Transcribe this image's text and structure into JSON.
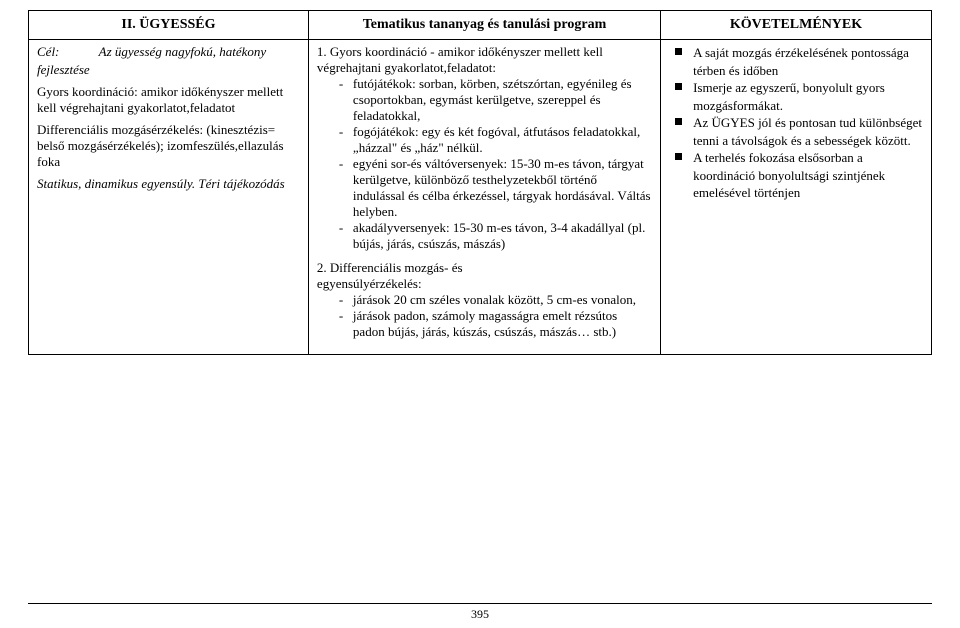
{
  "header": {
    "col1": "II. ÜGYESSÉG",
    "col2": "Tematikus tananyag és tanulási program",
    "col3": "KÖVETELMÉNYEK"
  },
  "left": {
    "goal_label": "Cél:",
    "goal_text": "Az ügyesség nagyfokú, hatékony",
    "goal_line2": "fejlesztése",
    "p1": "Gyors koordináció: amikor időkényszer mellett kell végrehajtani gyakorlatot,feladatot",
    "p2a": "Differenciális mozgásérzékelés: (kinesztézis= belső mozgásérzékelés); izomfeszülés,ellazulás foka",
    "p3": "Statikus, dinamikus egyensúly. Téri tájékozódás"
  },
  "mid": {
    "item1_title": "1. Gyors koordináció - amikor időkényszer mellett kell végrehajtani gyakorlatot,feladatot:",
    "item1_bullets": [
      "futójátékok: sorban, körben, szétszórtan, egyénileg és csoportokban, egymást kerülgetve, szereppel és feladatokkal,",
      "fogójátékok: egy és két fogóval, átfutásos feladatokkal, „házzal\" és „ház\" nélkül.",
      "egyéni sor-és váltóversenyek: 15-30 m-es távon, tárgyat kerülgetve, különböző testhelyzetekből történő indulással és célba érkezéssel, tárgyak hordásával. Váltás helyben.",
      "akadályversenyek: 15-30 m-es távon, 3-4 akadállyal (pl. bújás, járás, csúszás, mászás)"
    ],
    "item2_title_a": "2.   Differenciális mozgás- és",
    "item2_title_b": "egyensúlyérzékelés:",
    "item2_bullets": [
      "járások 20 cm széles vonalak között, 5 cm-es vonalon,",
      "járások padon, számoly magasságra emelt rézsútos padon bújás, járás, kúszás,  csúszás, mászás… stb.)"
    ]
  },
  "right": {
    "bullets": [
      "A saját mozgás érzékelésének pontossága térben és időben",
      "Ismerje az egyszerű,  bonyolult  gyors mozgásformákat.",
      "Az ÜGYES jól és pontosan tud különbséget tenni a távolságok és a sebességek között.",
      "A terhelés fokozása elsősorban a koordináció bonyolultsági szintjének emelésével történjen"
    ]
  },
  "page": "395"
}
